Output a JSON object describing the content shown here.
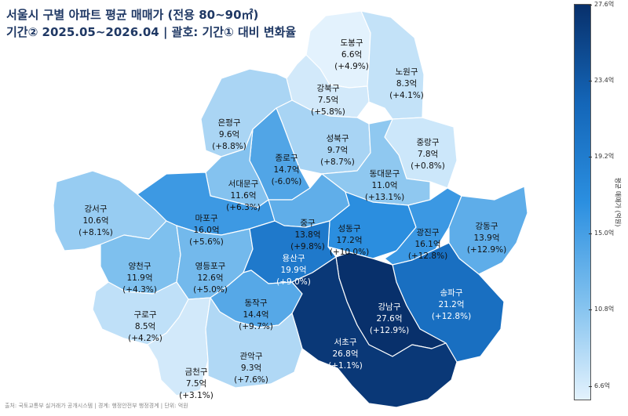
{
  "title_line1": "서울시 구별 아파트 평균 매매가 (전용 80~90㎡)",
  "title_line2": "기간② 2025.05~2026.04 | 괄호: 기간① 대비 변화율",
  "source": "출처: 국토교통부 실거래가 공개시스템 | 경계: 행정안전부 행정경계 | 단위: 억원",
  "colorbar": {
    "label": "평균 매매가 (억원)",
    "min": 6.6,
    "max": 27.6,
    "ticks": [
      "27.6억",
      "23.4억",
      "19.2억",
      "15.0억",
      "10.8억",
      "6.6억"
    ]
  },
  "districts": [
    {
      "name": "도봉구",
      "price": "6.6억",
      "change": "(+4.9%)",
      "value": 6.6
    },
    {
      "name": "노원구",
      "price": "8.3억",
      "change": "(+4.1%)",
      "value": 8.3
    },
    {
      "name": "강북구",
      "price": "7.5억",
      "change": "(+5.8%)",
      "value": 7.5
    },
    {
      "name": "은평구",
      "price": "9.6억",
      "change": "(+8.8%)",
      "value": 9.6
    },
    {
      "name": "성북구",
      "price": "9.7억",
      "change": "(+8.7%)",
      "value": 9.7
    },
    {
      "name": "종로구",
      "price": "14.7억",
      "change": "(-6.0%)",
      "value": 14.7
    },
    {
      "name": "중랑구",
      "price": "7.8억",
      "change": "(+0.8%)",
      "value": 7.8
    },
    {
      "name": "서대문구",
      "price": "11.6억",
      "change": "(+6.3%)",
      "value": 11.6
    },
    {
      "name": "동대문구",
      "price": "11.0억",
      "change": "(+13.1%)",
      "value": 11.0
    },
    {
      "name": "강서구",
      "price": "10.6억",
      "change": "(+8.1%)",
      "value": 10.6
    },
    {
      "name": "마포구",
      "price": "16.0억",
      "change": "(+5.6%)",
      "value": 16.0
    },
    {
      "name": "중구",
      "price": "13.8억",
      "change": "(+9.8%)",
      "value": 13.8
    },
    {
      "name": "성동구",
      "price": "17.2억",
      "change": "(+10.0%)",
      "value": 17.2
    },
    {
      "name": "광진구",
      "price": "16.1억",
      "change": "(+12.8%)",
      "value": 16.1
    },
    {
      "name": "강동구",
      "price": "13.9억",
      "change": "(+12.9%)",
      "value": 13.9
    },
    {
      "name": "양천구",
      "price": "11.9억",
      "change": "(+4.3%)",
      "value": 11.9
    },
    {
      "name": "영등포구",
      "price": "12.6억",
      "change": "(+5.0%)",
      "value": 12.6
    },
    {
      "name": "용산구",
      "price": "19.9억",
      "change": "(+9.0%)",
      "value": 19.9
    },
    {
      "name": "송파구",
      "price": "21.2억",
      "change": "(+12.8%)",
      "value": 21.2
    },
    {
      "name": "강남구",
      "price": "27.6억",
      "change": "(+12.9%)",
      "value": 27.6
    },
    {
      "name": "구로구",
      "price": "8.5억",
      "change": "(+4.2%)",
      "value": 8.5
    },
    {
      "name": "동작구",
      "price": "14.4억",
      "change": "(+9.7%)",
      "value": 14.4
    },
    {
      "name": "서초구",
      "price": "26.8억",
      "change": "(+1.1%)",
      "value": 26.8
    },
    {
      "name": "금천구",
      "price": "7.5억",
      "change": "(+3.1%)",
      "value": 7.5
    },
    {
      "name": "관악구",
      "price": "9.3억",
      "change": "(+7.6%)",
      "value": 9.3
    }
  ]
}
